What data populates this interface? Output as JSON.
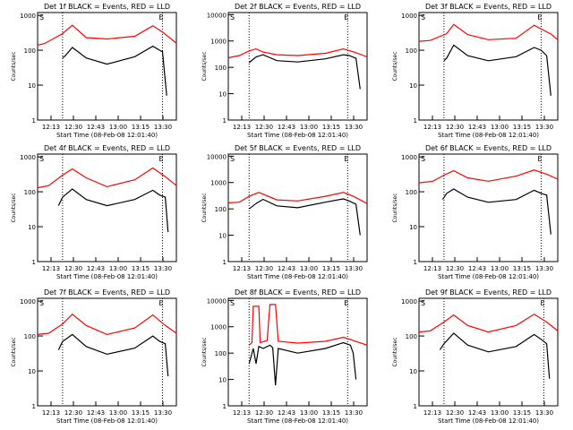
{
  "page": {
    "start_time_label": "Start Time (08-Feb-08 12:01:40)",
    "y_axis_label": "Counts/sec",
    "s_marker": "S",
    "e_marker": "E"
  },
  "colors": {
    "events": "#000000",
    "lld": "#ff0000",
    "frame": "#000000",
    "background": "#ffffff"
  },
  "chart_data": [
    {
      "title": "Det 1f BLACK = Events, RED = LLD",
      "type": "line",
      "xticks": [
        "12:13",
        "12:30",
        "12:43",
        "13:00",
        "13:15",
        "13:30"
      ],
      "yticks": [
        "1",
        "10",
        "100",
        "1000"
      ],
      "ylim": [
        1,
        1200
      ],
      "log_y": true,
      "series": [
        {
          "name": "LLD",
          "color": "#ff0000",
          "x": [
            0,
            0.05,
            0.18,
            0.25,
            0.35,
            0.5,
            0.7,
            0.83,
            0.9,
            1
          ],
          "y": [
            140,
            155,
            300,
            520,
            230,
            210,
            250,
            500,
            330,
            160
          ]
        },
        {
          "name": "Events",
          "color": "#000000",
          "x": [
            0.18,
            0.2,
            0.25,
            0.35,
            0.5,
            0.7,
            0.83,
            0.88,
            0.9,
            0.93
          ],
          "y": [
            60,
            70,
            120,
            60,
            40,
            65,
            130,
            100,
            90,
            5
          ]
        }
      ],
      "vlines": [
        0.18,
        0.9
      ]
    },
    {
      "title": "Det 2f BLACK = Events, RED = LLD",
      "type": "line",
      "xticks": [
        "12:13",
        "12:30",
        "12:43",
        "13:00",
        "13:15",
        "13:30"
      ],
      "yticks": [
        "1",
        "10",
        "100",
        "1000",
        "10000"
      ],
      "ylim": [
        1,
        12000
      ],
      "log_y": true,
      "series": [
        {
          "name": "LLD",
          "color": "#ff0000",
          "x": [
            0,
            0.08,
            0.15,
            0.2,
            0.25,
            0.35,
            0.5,
            0.7,
            0.83,
            0.92,
            1
          ],
          "y": [
            230,
            280,
            420,
            500,
            380,
            300,
            280,
            340,
            500,
            360,
            250
          ]
        },
        {
          "name": "Events",
          "color": "#000000",
          "x": [
            0.15,
            0.2,
            0.25,
            0.35,
            0.5,
            0.7,
            0.83,
            0.87,
            0.92,
            0.95
          ],
          "y": [
            150,
            250,
            300,
            180,
            160,
            210,
            300,
            280,
            220,
            15
          ]
        }
      ],
      "vlines": [
        0.15,
        0.86
      ]
    },
    {
      "title": "Det 3f BLACK = Events, RED = LLD",
      "type": "line",
      "xticks": [
        "12:13",
        "12:30",
        "12:43",
        "13:00",
        "13:15",
        "13:30"
      ],
      "yticks": [
        "1",
        "10",
        "100",
        "1000"
      ],
      "ylim": [
        1,
        1200
      ],
      "log_y": true,
      "series": [
        {
          "name": "LLD",
          "color": "#ff0000",
          "x": [
            0,
            0.08,
            0.2,
            0.25,
            0.35,
            0.5,
            0.7,
            0.83,
            0.95,
            1
          ],
          "y": [
            180,
            190,
            300,
            550,
            280,
            200,
            220,
            520,
            290,
            200
          ]
        },
        {
          "name": "Events",
          "color": "#000000",
          "x": [
            0.18,
            0.2,
            0.25,
            0.35,
            0.5,
            0.7,
            0.83,
            0.88,
            0.92,
            0.95
          ],
          "y": [
            50,
            60,
            140,
            70,
            50,
            65,
            120,
            100,
            70,
            5
          ]
        }
      ],
      "vlines": [
        0.18,
        0.88
      ]
    },
    {
      "title": "Det 4f BLACK = Events, RED = LLD",
      "type": "line",
      "xticks": [
        "12:13",
        "12:30",
        "12:43",
        "13:00",
        "13:15",
        "13:30"
      ],
      "yticks": [
        "1",
        "10",
        "100",
        "1000"
      ],
      "ylim": [
        1,
        1200
      ],
      "log_y": true,
      "series": [
        {
          "name": "LLD",
          "color": "#ff0000",
          "x": [
            0,
            0.08,
            0.18,
            0.25,
            0.35,
            0.5,
            0.7,
            0.83,
            0.92,
            1
          ],
          "y": [
            130,
            150,
            300,
            450,
            250,
            140,
            220,
            480,
            270,
            150
          ]
        },
        {
          "name": "Events",
          "color": "#000000",
          "x": [
            0.15,
            0.18,
            0.25,
            0.35,
            0.5,
            0.7,
            0.83,
            0.88,
            0.92,
            0.94
          ],
          "y": [
            40,
            70,
            120,
            60,
            40,
            60,
            110,
            80,
            70,
            7
          ]
        }
      ],
      "vlines": [
        0.18,
        0.9
      ]
    },
    {
      "title": "Det 5f BLACK = Events, RED = LLD",
      "type": "line",
      "xticks": [
        "12:13",
        "12:30",
        "12:43",
        "13:00",
        "13:15",
        "13:30"
      ],
      "yticks": [
        "1",
        "10",
        "100",
        "1000",
        "10000"
      ],
      "ylim": [
        1,
        12000
      ],
      "log_y": true,
      "series": [
        {
          "name": "LLD",
          "color": "#ff0000",
          "x": [
            0,
            0.08,
            0.15,
            0.22,
            0.35,
            0.5,
            0.7,
            0.83,
            0.9,
            1
          ],
          "y": [
            170,
            180,
            300,
            420,
            220,
            200,
            300,
            420,
            300,
            160
          ]
        },
        {
          "name": "Events",
          "color": "#000000",
          "x": [
            0.15,
            0.2,
            0.25,
            0.35,
            0.5,
            0.7,
            0.83,
            0.87,
            0.92,
            0.95
          ],
          "y": [
            100,
            160,
            230,
            130,
            110,
            180,
            240,
            200,
            150,
            10
          ]
        }
      ],
      "vlines": [
        0.15,
        0.86
      ]
    },
    {
      "title": "Det 6f BLACK = Events, RED = LLD",
      "type": "line",
      "xticks": [
        "12:13",
        "12:30",
        "12:43",
        "13:00",
        "13:15",
        "13:30"
      ],
      "yticks": [
        "1",
        "10",
        "100",
        "1000"
      ],
      "ylim": [
        1,
        1200
      ],
      "log_y": true,
      "series": [
        {
          "name": "LLD",
          "color": "#ff0000",
          "x": [
            0,
            0.1,
            0.18,
            0.25,
            0.35,
            0.5,
            0.7,
            0.83,
            0.92,
            1
          ],
          "y": [
            180,
            200,
            300,
            400,
            250,
            200,
            280,
            420,
            320,
            230
          ]
        },
        {
          "name": "Events",
          "color": "#000000",
          "x": [
            0.17,
            0.2,
            0.25,
            0.35,
            0.5,
            0.7,
            0.83,
            0.88,
            0.92,
            0.95
          ],
          "y": [
            60,
            90,
            120,
            70,
            50,
            60,
            110,
            90,
            80,
            6
          ]
        }
      ],
      "vlines": [
        0.18,
        0.88
      ]
    },
    {
      "title": "Det 7f BLACK = Events, RED = LLD",
      "type": "line",
      "xticks": [
        "12:13",
        "12:30",
        "12:43",
        "13:00",
        "13:15",
        "13:30"
      ],
      "yticks": [
        "1",
        "10",
        "100",
        "1000"
      ],
      "ylim": [
        1,
        1200
      ],
      "log_y": true,
      "series": [
        {
          "name": "LLD",
          "color": "#ff0000",
          "x": [
            0,
            0.08,
            0.18,
            0.25,
            0.35,
            0.5,
            0.7,
            0.83,
            0.92,
            1
          ],
          "y": [
            110,
            120,
            220,
            420,
            200,
            110,
            170,
            400,
            200,
            120
          ]
        },
        {
          "name": "Events",
          "color": "#000000",
          "x": [
            0.15,
            0.18,
            0.25,
            0.35,
            0.5,
            0.7,
            0.83,
            0.88,
            0.92,
            0.94
          ],
          "y": [
            40,
            70,
            110,
            50,
            30,
            45,
            100,
            70,
            60,
            7
          ]
        }
      ],
      "vlines": [
        0.18,
        0.9
      ]
    },
    {
      "title": "Det 8f BLACK = Events, RED = LLD",
      "type": "line",
      "xticks": [
        "12:13",
        "12:30",
        "12:43",
        "13:00",
        "13:15",
        "13:30"
      ],
      "yticks": [
        "1",
        "10",
        "100",
        "1000",
        "10000"
      ],
      "ylim": [
        1,
        12000
      ],
      "log_y": true,
      "series": [
        {
          "name": "LLD",
          "color": "#ff0000",
          "x": [
            0.15,
            0.17,
            0.18,
            0.2,
            0.22,
            0.23,
            0.28,
            0.3,
            0.32,
            0.34,
            0.36,
            0.5,
            0.7,
            0.83,
            0.9,
            1
          ],
          "y": [
            200,
            250,
            6000,
            6000,
            6000,
            250,
            300,
            7000,
            7000,
            7000,
            280,
            240,
            280,
            400,
            300,
            200
          ]
        },
        {
          "name": "Events",
          "color": "#000000",
          "x": [
            0.15,
            0.18,
            0.2,
            0.22,
            0.25,
            0.3,
            0.32,
            0.34,
            0.36,
            0.5,
            0.7,
            0.83,
            0.88,
            0.9,
            0.92
          ],
          "y": [
            40,
            150,
            40,
            180,
            150,
            200,
            160,
            6,
            150,
            100,
            150,
            250,
            200,
            100,
            10
          ]
        }
      ],
      "vlines": [
        0.15,
        0.86
      ]
    },
    {
      "title": "Det 9f BLACK = Events, RED = LLD",
      "type": "line",
      "xticks": [
        "12:13",
        "12:30",
        "12:43",
        "13:00",
        "13:15",
        "13:30"
      ],
      "yticks": [
        "1",
        "10",
        "100",
        "1000"
      ],
      "ylim": [
        1,
        1200
      ],
      "log_y": true,
      "series": [
        {
          "name": "LLD",
          "color": "#ff0000",
          "x": [
            0,
            0.08,
            0.18,
            0.25,
            0.35,
            0.5,
            0.7,
            0.83,
            0.92,
            1
          ],
          "y": [
            130,
            140,
            250,
            400,
            200,
            130,
            200,
            420,
            250,
            140
          ]
        },
        {
          "name": "Events",
          "color": "#000000",
          "x": [
            0.15,
            0.18,
            0.25,
            0.35,
            0.5,
            0.7,
            0.83,
            0.88,
            0.92,
            0.94
          ],
          "y": [
            40,
            60,
            120,
            55,
            35,
            50,
            110,
            80,
            60,
            6
          ]
        }
      ],
      "vlines": [
        0.18,
        0.9
      ]
    }
  ]
}
